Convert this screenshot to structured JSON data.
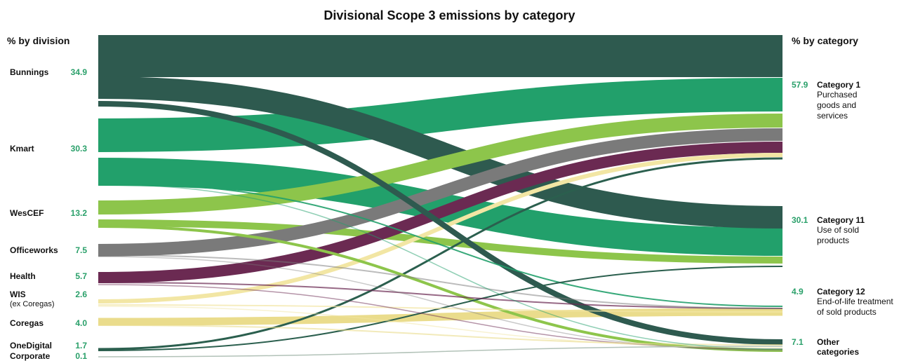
{
  "title": "Divisional Scope 3 emissions by category",
  "left_header": "% by division",
  "right_header": "% by category",
  "divisions": [
    {
      "key": "bunnings",
      "name": "Bunnings",
      "sub": "",
      "value": "34.9",
      "pct": 34.9,
      "color": "#2e5a4f"
    },
    {
      "key": "kmart",
      "name": "Kmart",
      "sub": "",
      "value": "30.3",
      "pct": 30.3,
      "color": "#22a06b"
    },
    {
      "key": "wescef",
      "name": "WesCEF",
      "sub": "",
      "value": "13.2",
      "pct": 13.2,
      "color": "#8dc54b"
    },
    {
      "key": "officeworks",
      "name": "Officeworks",
      "sub": "",
      "value": "7.5",
      "pct": 7.5,
      "color": "#7a7a7a"
    },
    {
      "key": "health",
      "name": "Health",
      "sub": "",
      "value": "5.7",
      "pct": 5.7,
      "color": "#6b2a52"
    },
    {
      "key": "wis",
      "name": "WIS",
      "sub": "(ex Coregas)",
      "value": "2.6",
      "pct": 2.6,
      "color": "#f2e6a4"
    },
    {
      "key": "coregas",
      "name": "Coregas",
      "sub": "",
      "value": "4.0",
      "pct": 4.0,
      "color": "#eadc8c"
    },
    {
      "key": "onedigital",
      "name": "OneDigital",
      "sub": "",
      "value": "1.7",
      "pct": 1.7,
      "color": "#2b5f4e"
    },
    {
      "key": "corporate",
      "name": "Corporate",
      "sub": "",
      "value": "0.1",
      "pct": 0.1,
      "color": "#9fb3a6"
    }
  ],
  "categories": [
    {
      "key": "cat1",
      "value": "57.9",
      "name": "Category 1",
      "desc": "Purchased goods and services"
    },
    {
      "key": "cat11",
      "value": "30.1",
      "name": "Category 11",
      "desc": "Use of sold products"
    },
    {
      "key": "cat12",
      "value": "4.9",
      "name": "Category 12",
      "desc": "End-of-life treatment of sold products"
    },
    {
      "key": "other",
      "value": "7.1",
      "name": "Other",
      "desc": "categories"
    }
  ]
}
